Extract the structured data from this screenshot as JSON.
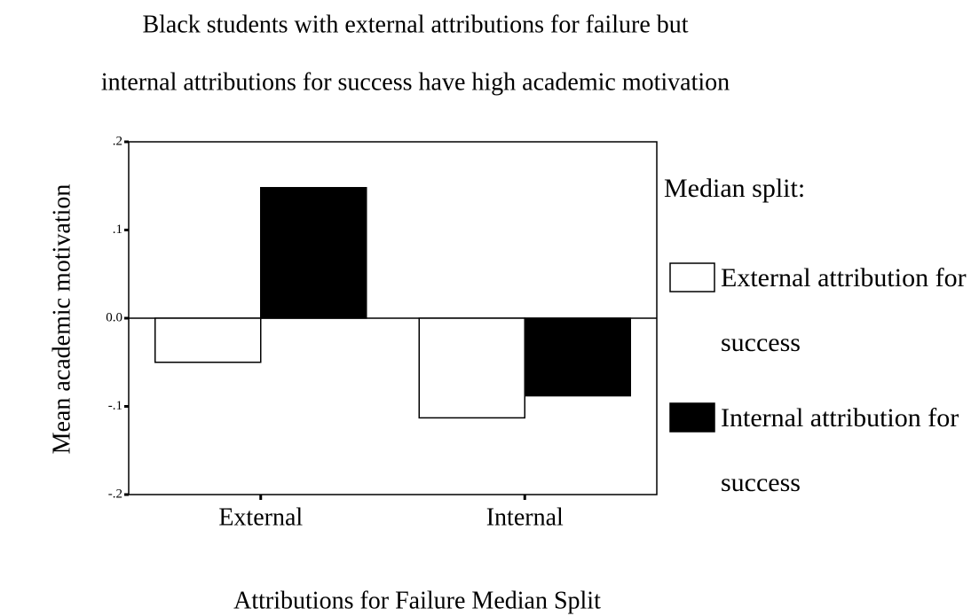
{
  "chart_data": {
    "type": "bar",
    "title": [
      "Black students with external attributions for failure but",
      "internal attributions for success have high academic motivation"
    ],
    "x_label": "Attributions for Failure Median Split",
    "y_label": "Mean academic motivation",
    "legend_title": "Median split:",
    "categories": [
      "External",
      "Internal"
    ],
    "series": [
      {
        "name": "External attribution for success",
        "color": "#ffffff",
        "values": [
          -0.05,
          -0.113
        ]
      },
      {
        "name": "Internal attribution for success",
        "color": "#000000",
        "values": [
          0.148,
          -0.088
        ]
      }
    ],
    "ylim": [
      -0.2,
      0.2
    ],
    "yticks": [
      {
        "value": 0.2,
        "label": ".2"
      },
      {
        "value": 0.1,
        "label": ".1"
      },
      {
        "value": 0,
        "label": "0.0"
      },
      {
        "value": -0.1,
        "label": "-.1"
      },
      {
        "value": -0.2,
        "label": "-.2"
      }
    ],
    "legend": "right"
  }
}
